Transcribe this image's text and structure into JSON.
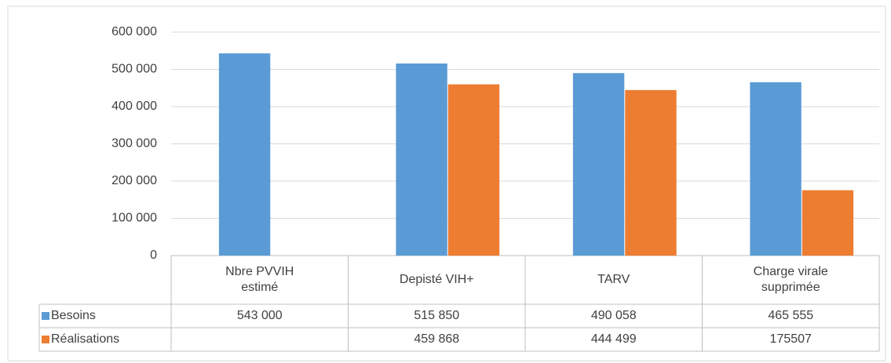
{
  "chart_data": {
    "type": "bar",
    "categories": [
      "Nbre PVVIH estimé",
      "Depisté VIH+",
      "TARV",
      "Charge virale supprimée"
    ],
    "series": [
      {
        "name": "Besoins",
        "color": "#5b9bd5",
        "values": [
          543000,
          515850,
          490058,
          465555
        ],
        "value_labels": [
          "543 000",
          "515 850",
          "490 058",
          "465 555"
        ]
      },
      {
        "name": "Réalisations",
        "color": "#ed7d31",
        "values": [
          null,
          459868,
          444499,
          175507
        ],
        "value_labels": [
          null,
          "459 868",
          "444 499",
          "175507"
        ]
      }
    ],
    "ylim": [
      0,
      600000
    ],
    "yticks": [
      0,
      {
        "value": 100000,
        "label": "100 000"
      },
      {
        "value": 200000,
        "label": "200 000"
      },
      {
        "value": 300000,
        "label": "300 000"
      },
      {
        "value": 400000,
        "label": "400 000"
      },
      {
        "value": 500000,
        "label": "500 000"
      },
      {
        "value": 600000,
        "label": "600 000"
      }
    ],
    "grid": true
  }
}
